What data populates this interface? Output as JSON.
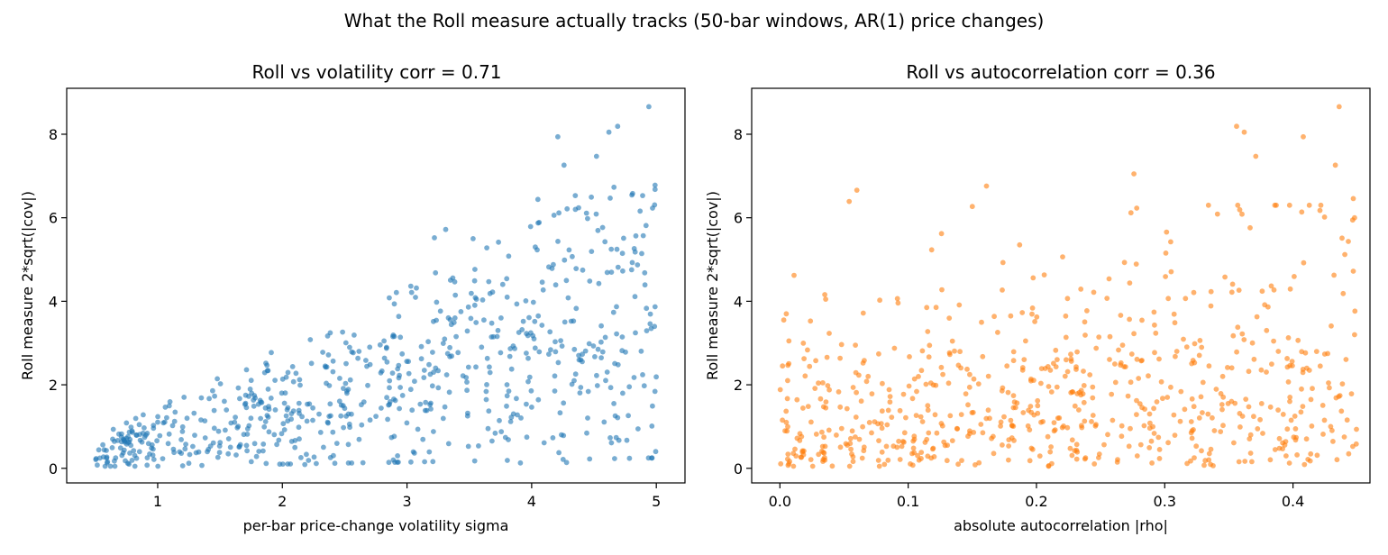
{
  "figure": {
    "suptitle": "What the Roll measure actually tracks (50-bar windows, AR(1) price changes)"
  },
  "chart_data": [
    {
      "type": "scatter",
      "title": "Roll vs volatility   corr = 0.71",
      "xlabel": "per-bar price-change volatility  sigma",
      "ylabel": "Roll measure  2*sqrt(|cov|)",
      "xlim": [
        0.27,
        5.23
      ],
      "ylim": [
        -0.35,
        9.1
      ],
      "xticks": [
        1,
        2,
        3,
        4,
        5
      ],
      "yticks": [
        0,
        2,
        4,
        6,
        8
      ],
      "grid": false,
      "color": "#1f77b4",
      "n_points": 700,
      "generator": {
        "xmin": 0.5,
        "xmax": 5.0,
        "k_mean": 0.72,
        "k_sd": 0.42,
        "seed": 11
      },
      "points": [
        [
          4.94,
          8.66
        ],
        [
          4.69,
          8.19
        ],
        [
          4.62,
          8.05
        ],
        [
          4.21,
          7.94
        ],
        [
          4.52,
          7.47
        ],
        [
          4.26,
          7.26
        ],
        [
          4.99,
          6.78
        ],
        [
          4.99,
          6.68
        ],
        [
          4.66,
          6.73
        ],
        [
          4.35,
          6.53
        ],
        [
          4.05,
          6.44
        ],
        [
          4.81,
          6.58
        ],
        [
          4.89,
          6.53
        ],
        [
          4.97,
          6.23
        ],
        [
          4.87,
          6.16
        ],
        [
          4.63,
          6.47
        ],
        [
          4.44,
          6.11
        ],
        [
          3.53,
          5.5
        ],
        [
          3.22,
          5.52
        ],
        [
          3.31,
          5.72
        ],
        [
          3.64,
          5.28
        ],
        [
          2.18,
          0.09
        ],
        [
          2.21,
          0.19
        ],
        [
          2.89,
          0.2
        ],
        [
          3.91,
          0.13
        ],
        [
          4.28,
          0.14
        ],
        [
          4.63,
          0.73
        ],
        [
          4.64,
          0.61
        ],
        [
          4.7,
          0.67
        ],
        [
          1.25,
          0.12
        ],
        [
          0.74,
          0.18
        ],
        [
          0.76,
          0.12
        ],
        [
          0.83,
          0.24
        ],
        [
          0.97,
          0.21
        ],
        [
          1.04,
          0.23
        ],
        [
          1.19,
          0.36
        ],
        [
          3.79,
          0.74
        ],
        [
          4.17,
          0.73
        ],
        [
          4.1,
          0.61
        ],
        [
          3.65,
          0.95
        ]
      ]
    },
    {
      "type": "scatter",
      "title": "Roll vs autocorrelation   corr = 0.36",
      "xlabel": "absolute autocorrelation  |rho|",
      "ylabel": "Roll measure  2*sqrt(|cov|)",
      "xlim": [
        -0.022,
        0.46
      ],
      "ylim": [
        -0.35,
        9.1
      ],
      "xticks": [
        0.0,
        0.1,
        0.2,
        0.3,
        0.4
      ],
      "yticks": [
        0,
        2,
        4,
        6,
        8
      ],
      "grid": false,
      "color": "#ff7f0e",
      "n_points": 700,
      "generator": {
        "xmin": 0.0,
        "xmax": 0.45,
        "seed": 23
      },
      "points": [
        [
          0.436,
          8.66
        ],
        [
          0.356,
          8.19
        ],
        [
          0.362,
          8.05
        ],
        [
          0.408,
          7.94
        ],
        [
          0.371,
          7.47
        ],
        [
          0.433,
          7.26
        ],
        [
          0.276,
          7.05
        ],
        [
          0.161,
          6.76
        ],
        [
          0.06,
          6.66
        ],
        [
          0.054,
          6.39
        ],
        [
          0.15,
          6.27
        ],
        [
          0.126,
          5.62
        ],
        [
          0.005,
          3.7
        ],
        [
          0.003,
          3.55
        ],
        [
          0.007,
          3.05
        ],
        [
          0.006,
          2.1
        ],
        [
          0.005,
          1.1
        ],
        [
          0.006,
          0.22
        ],
        [
          0.007,
          0.11
        ],
        [
          0.011,
          4.62
        ],
        [
          0.035,
          4.16
        ],
        [
          0.447,
          6.46
        ],
        [
          0.448,
          6.0
        ],
        [
          0.447,
          4.72
        ],
        [
          0.448,
          3.2
        ]
      ]
    }
  ]
}
